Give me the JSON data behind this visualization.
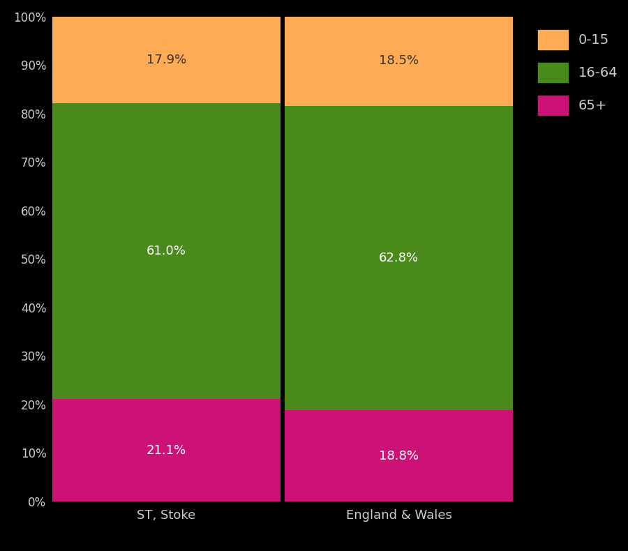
{
  "categories": [
    "ST, Stoke",
    "England & Wales"
  ],
  "segments": {
    "65+": [
      21.1,
      18.8
    ],
    "16-64": [
      61.0,
      62.8
    ],
    "0-15": [
      17.9,
      18.5
    ]
  },
  "colors": {
    "65+": "#cc1177",
    "16-64": "#4a8a1a",
    "0-15": "#ffaa55"
  },
  "label_colors": {
    "65+": "white",
    "16-64": "white",
    "0-15": "#333333"
  },
  "background_color": "#000000",
  "text_color": "#cccccc",
  "bar_width": 0.98,
  "figsize": [
    9.0,
    7.9
  ],
  "dpi": 100,
  "yticks": [
    0,
    10,
    20,
    30,
    40,
    50,
    60,
    70,
    80,
    90,
    100
  ],
  "ytick_labels": [
    "0%",
    "10%",
    "20%",
    "30%",
    "40%",
    "50%",
    "60%",
    "70%",
    "80%",
    "90%",
    "100%"
  ]
}
